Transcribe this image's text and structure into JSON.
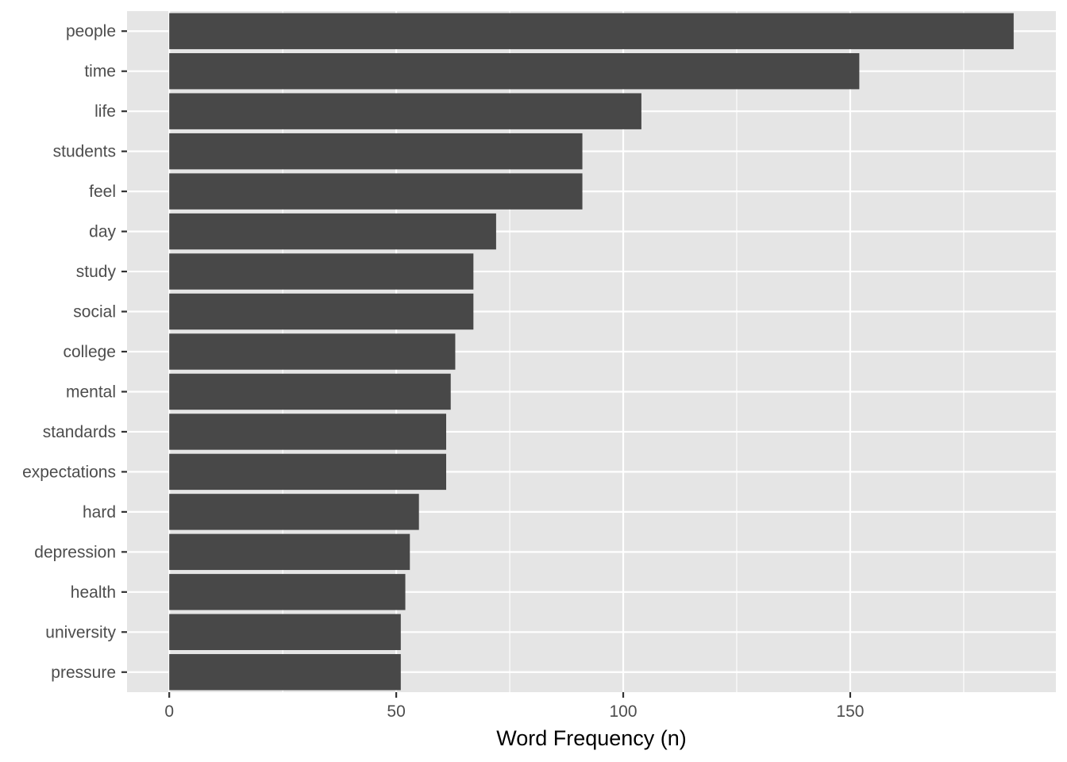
{
  "chart_data": {
    "type": "bar",
    "orientation": "horizontal",
    "title": "",
    "xlabel": "Word Frequency (n)",
    "ylabel": "",
    "categories": [
      "people",
      "time",
      "life",
      "students",
      "feel",
      "day",
      "study",
      "social",
      "college",
      "mental",
      "standards",
      "expectations",
      "hard",
      "depression",
      "health",
      "university",
      "pressure"
    ],
    "values": [
      186,
      152,
      104,
      91,
      91,
      72,
      67,
      67,
      63,
      62,
      61,
      61,
      55,
      53,
      52,
      51,
      51
    ],
    "xlim": [
      -9.3,
      195.3
    ],
    "x_ticks": [
      0,
      50,
      100,
      150
    ],
    "x_tick_labels": [
      "0",
      "50",
      "100",
      "150"
    ],
    "x_minor_ticks": [
      25,
      75,
      125,
      175
    ],
    "grid": true,
    "legend": "none",
    "colors": {
      "bar": "#484848",
      "panel_background": "#e5e5e5",
      "grid": "#ffffff",
      "tick_label": "#4d4d4d",
      "axis_title": "#000000",
      "tick_mark": "#333333"
    }
  }
}
